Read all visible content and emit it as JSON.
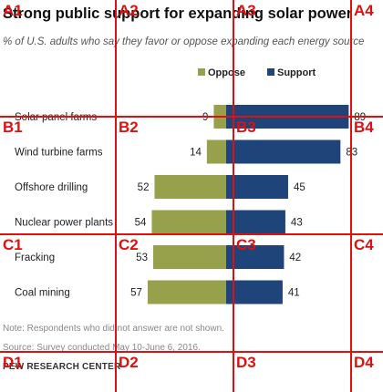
{
  "chart_data": {
    "type": "bar",
    "title": "Strong public support for expanding solar power",
    "subtitle": "% of U.S. adults who say they favor or oppose expanding each energy source",
    "categories": [
      "Solar panel farms",
      "Wind turbine farms",
      "Offshore drilling",
      "Nuclear power plants",
      "Fracking",
      "Coal mining"
    ],
    "series": [
      {
        "name": "Oppose",
        "values": [
          9,
          14,
          52,
          54,
          53,
          57
        ],
        "color": "#97a04a"
      },
      {
        "name": "Support",
        "values": [
          89,
          83,
          45,
          43,
          42,
          41
        ],
        "color": "#1f4479"
      }
    ],
    "legend_position": "top-right",
    "grid": false
  },
  "note": "Note: Respondents who did not answer are not shown.",
  "source": "Source: Survey conducted May 10-June 6, 2016.",
  "org": "PEW RESEARCH CENTER",
  "overlay": {
    "color": "#e01010",
    "labels": [
      "A1",
      "A2",
      "A3",
      "A4",
      "B1",
      "B2",
      "B3",
      "B4",
      "C1",
      "C2",
      "C3",
      "C4",
      "D1",
      "D2",
      "D3",
      "D4"
    ]
  }
}
